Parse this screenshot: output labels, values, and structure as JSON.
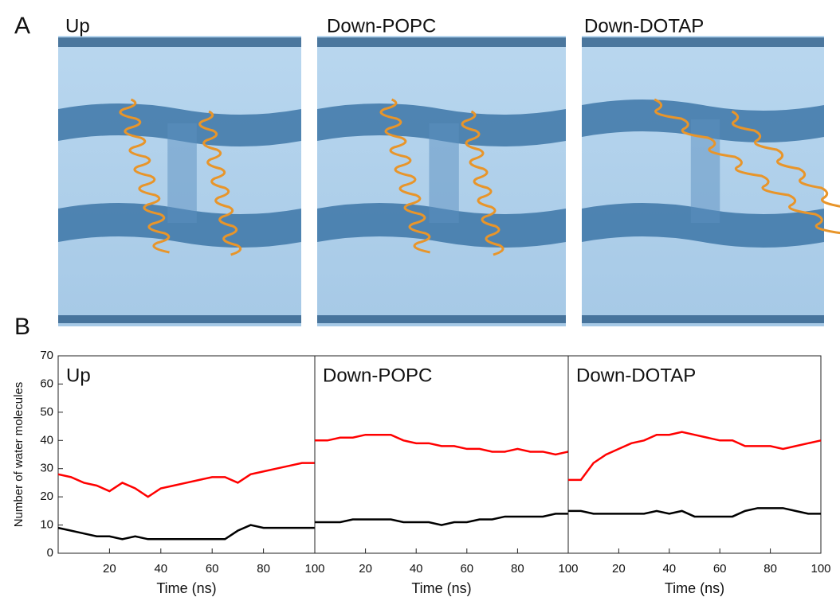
{
  "panel_labels": [
    "A",
    "B"
  ],
  "images": [
    {
      "label": "Up"
    },
    {
      "label": "Down-POPC"
    },
    {
      "label": "Down-DOTAP"
    }
  ],
  "chart_data": [
    {
      "type": "line",
      "title": "Up",
      "xlabel": "Time (ns)",
      "ylabel": "Number of water molecules",
      "x": [
        0,
        5,
        10,
        15,
        20,
        25,
        30,
        35,
        40,
        45,
        50,
        55,
        60,
        65,
        70,
        75,
        80,
        85,
        90,
        95,
        100
      ],
      "series": [
        {
          "color": "#ff0000",
          "values": [
            28,
            27,
            25,
            24,
            22,
            25,
            23,
            20,
            23,
            24,
            25,
            26,
            27,
            27,
            25,
            28,
            29,
            30,
            31,
            32,
            32
          ]
        },
        {
          "color": "#000000",
          "values": [
            9,
            8,
            7,
            6,
            6,
            5,
            6,
            5,
            5,
            5,
            5,
            5,
            5,
            5,
            8,
            10,
            9,
            9,
            9,
            9,
            9
          ]
        }
      ],
      "xlim": [
        0,
        100
      ],
      "xticks": [
        20,
        40,
        60,
        80,
        100
      ],
      "ylim": [
        0,
        70
      ],
      "yticks": [
        0,
        10,
        20,
        30,
        40,
        50,
        60,
        70
      ]
    },
    {
      "type": "line",
      "title": "Down-POPC",
      "xlabel": "Time (ns)",
      "x": [
        0,
        5,
        10,
        15,
        20,
        25,
        30,
        35,
        40,
        45,
        50,
        55,
        60,
        65,
        70,
        75,
        80,
        85,
        90,
        95,
        100
      ],
      "series": [
        {
          "color": "#ff0000",
          "values": [
            40,
            40,
            41,
            41,
            42,
            42,
            42,
            40,
            39,
            39,
            38,
            38,
            37,
            37,
            36,
            36,
            37,
            36,
            36,
            35,
            36
          ]
        },
        {
          "color": "#000000",
          "values": [
            11,
            11,
            11,
            12,
            12,
            12,
            12,
            11,
            11,
            11,
            10,
            11,
            11,
            12,
            12,
            13,
            13,
            13,
            13,
            14,
            14
          ]
        }
      ],
      "xlim": [
        0,
        100
      ],
      "xticks": [
        20,
        40,
        60,
        80,
        100
      ],
      "ylim": [
        0,
        70
      ]
    },
    {
      "type": "line",
      "title": "Down-DOTAP",
      "xlabel": "Time (ns)",
      "x": [
        0,
        5,
        10,
        15,
        20,
        25,
        30,
        35,
        40,
        45,
        50,
        55,
        60,
        65,
        70,
        75,
        80,
        85,
        90,
        95,
        100
      ],
      "series": [
        {
          "color": "#ff0000",
          "values": [
            26,
            26,
            32,
            35,
            37,
            39,
            40,
            42,
            42,
            43,
            42,
            41,
            40,
            40,
            38,
            38,
            38,
            37,
            38,
            39,
            40
          ]
        },
        {
          "color": "#000000",
          "values": [
            15,
            15,
            14,
            14,
            14,
            14,
            14,
            15,
            14,
            15,
            13,
            13,
            13,
            13,
            15,
            16,
            16,
            16,
            15,
            14,
            14
          ]
        }
      ],
      "xlim": [
        0,
        100
      ],
      "xticks": [
        20,
        40,
        60,
        80,
        100
      ],
      "ylim": [
        0,
        70
      ]
    }
  ]
}
